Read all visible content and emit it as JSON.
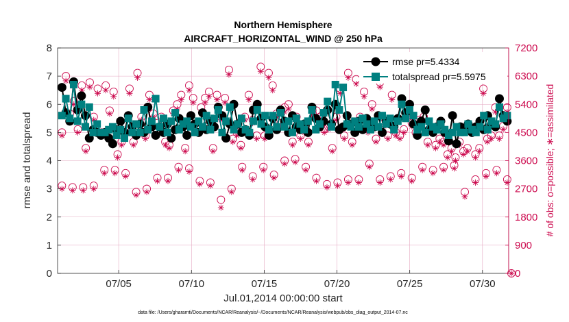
{
  "chart_data": {
    "type": "line",
    "title_line1": "Northern Hemisphere",
    "title_line2": "AIRCRAFT_HORIZONTAL_WIND @ 250 hPa",
    "xlabel": "Jul.01,2014 00:00:00 start",
    "ylabel_left": "rmse and totalspread",
    "ylabel_right": "# of obs: o=possible; ∗=assimilated",
    "footer": "data file: /Users/gharamti/Documents/NCAR/Reanalysis/~/Documents/NCAR/Reanalysis/webpub/obs_diag_output_2014-07.nc",
    "xlim": [
      0.8,
      31.8
    ],
    "ylim_left": [
      0,
      8
    ],
    "ylim_right": [
      0,
      7200
    ],
    "x_ticks": [
      {
        "x": 5,
        "label": "07/05"
      },
      {
        "x": 10,
        "label": "07/10"
      },
      {
        "x": 15,
        "label": "07/15"
      },
      {
        "x": 20,
        "label": "07/20"
      },
      {
        "x": 25,
        "label": "07/25"
      },
      {
        "x": 30,
        "label": "07/30"
      }
    ],
    "y_ticks_left": [
      "0",
      "1",
      "2",
      "3",
      "4",
      "5",
      "6",
      "7",
      "8"
    ],
    "y_ticks_right": [
      "0",
      "900",
      "1800",
      "2700",
      "3600",
      "4500",
      "5400",
      "6300",
      "7200"
    ],
    "legend": [
      {
        "name": "rmse pr=5.4334",
        "color": "#000000"
      },
      {
        "name": "totalspread pr=5.5975",
        "color": "#008080"
      }
    ],
    "colors": {
      "rmse": "#000000",
      "spread": "#008080",
      "obs": "#cc0a4e",
      "grid": "#e4a7c0"
    },
    "series": [
      {
        "name": "rmse",
        "values": [
          6.6,
          5.7,
          5.4,
          6.8,
          5.8,
          6.3,
          5.6,
          4.8,
          5.1,
          5.0,
          4.9,
          5.0,
          4.8,
          4.6,
          5.1,
          5.4,
          5.0,
          5.6,
          5.2,
          4.9,
          5.3,
          5.0,
          5.9,
          5.2,
          4.9,
          5.2,
          5.0,
          5.3,
          4.8,
          5.1,
          5.5,
          5.2,
          4.9,
          5.6,
          5.3,
          5.0,
          5.7,
          5.1,
          5.4,
          5.2,
          5.9,
          5.6,
          4.8,
          5.3,
          6.0,
          5.3,
          5.0,
          5.1,
          4.9,
          5.8,
          6.0,
          5.5,
          5.2,
          4.9,
          5.5,
          5.1,
          5.8,
          5.4,
          5.0,
          5.6,
          5.2,
          5.1,
          5.3,
          5.0,
          5.9,
          5.5,
          5.2,
          5.4,
          5.8,
          5.3,
          6.0,
          5.1,
          5.2,
          5.6,
          5.3,
          5.0,
          5.4,
          5.1,
          5.5,
          5.3,
          5.2,
          5.6,
          5.0,
          5.4,
          5.3,
          5.2,
          5.5,
          6.2,
          5.7,
          6.0,
          5.3,
          4.9,
          5.4,
          5.8,
          5.1,
          5.0,
          5.2,
          5.4,
          5.0,
          4.7,
          5.6,
          4.6,
          5.2,
          5.1,
          5.3,
          5.0,
          5.2,
          5.4,
          5.1,
          5.6,
          5.3,
          5.2,
          6.2,
          5.6,
          5.4
        ]
      },
      {
        "name": "totalspread",
        "values": [
          5.6,
          6.2,
          5.5,
          6.7,
          5.4,
          6.0,
          5.2,
          5.9,
          5.0,
          5.3,
          5.0,
          5.0,
          5.1,
          5.2,
          4.9,
          5.1,
          4.8,
          5.5,
          5.0,
          5.3,
          5.0,
          5.8,
          5.1,
          5.4,
          6.2,
          5.2,
          5.5,
          5.0,
          5.4,
          5.7,
          5.1,
          5.3,
          5.4,
          5.2,
          5.0,
          5.4,
          5.2,
          5.6,
          5.1,
          5.5,
          5.8,
          5.0,
          5.4,
          5.9,
          5.1,
          5.3,
          5.5,
          5.1,
          5.0,
          5.4,
          5.8,
          5.3,
          5.6,
          5.1,
          5.6,
          5.2,
          5.7,
          5.2,
          5.4,
          5.0,
          5.5,
          5.3,
          5.1,
          5.4,
          5.8,
          5.1,
          5.3,
          5.7,
          6.1,
          5.2,
          6.7,
          5.8,
          6.6,
          5.3,
          5.2,
          5.4,
          5.2,
          5.5,
          5.3,
          5.1,
          5.4,
          5.2,
          5.6,
          5.3,
          5.5,
          5.1,
          5.4,
          6.0,
          5.5,
          5.8,
          5.6,
          5.1,
          5.2,
          5.0,
          5.4,
          5.2,
          5.1,
          5.3,
          5.1,
          4.9,
          5.0,
          5.2,
          5.0,
          5.0,
          5.3,
          5.1,
          5.0,
          5.2,
          5.6,
          5.1,
          5.4,
          5.3,
          5.9,
          5.5,
          5.6
        ]
      },
      {
        "name": "obs_possible_day",
        "values": [
          4500,
          6300,
          5100,
          5500,
          4600,
          6000,
          4000,
          6100,
          5000,
          5900,
          4500,
          6000,
          5200,
          5800,
          3800,
          4200,
          4500,
          5900,
          4200,
          6400,
          5000,
          4400,
          5700,
          5100,
          4800,
          5000,
          4200,
          4100,
          5200,
          5400,
          5700,
          4000,
          6000,
          5600,
          4600,
          5300,
          5600,
          5800,
          4000,
          5700,
          5000,
          5600,
          6500,
          4300,
          4500,
          4100,
          5000,
          5700,
          4900,
          4400,
          6600,
          4400,
          6400,
          6000,
          5100,
          4800,
          5300,
          5400,
          4200,
          5000,
          4400,
          4600,
          4200,
          5200,
          5200,
          5000,
          4600,
          4700,
          4000,
          5000,
          5900,
          4400,
          6400,
          4200,
          6200,
          5000,
          5800,
          4600,
          5400,
          4300,
          6100,
          4800,
          4400,
          5700,
          4500,
          4400,
          4600,
          5100,
          4800,
          4500,
          4900,
          5000,
          4200,
          4600,
          4100,
          4300,
          4200,
          3800,
          4000,
          3700,
          4200,
          3900,
          4000,
          6400,
          3800,
          4000,
          5900,
          4300,
          4400,
          5300,
          4400,
          4700,
          5300
        ]
      },
      {
        "name": "obs_possible_night",
        "values": [
          2800,
          2750,
          2750,
          2800,
          3300,
          3300,
          3200,
          2600,
          2700,
          3050,
          3050,
          3400,
          3350,
          2950,
          2900,
          2350,
          2700,
          3400,
          3100,
          3400,
          3150,
          3600,
          3650,
          3400,
          3050,
          2850,
          2900,
          3000,
          3000,
          3500,
          3000,
          3100,
          3200,
          3050,
          3400,
          3300,
          3400,
          3450,
          2600,
          3000,
          3200,
          3300,
          3000
        ]
      },
      {
        "name": "obs_assimilated_day",
        "values": [
          4400,
          6150,
          5000,
          5400,
          4500,
          5850,
          3900,
          5950,
          4900,
          5750,
          4400,
          5850,
          5100,
          5650,
          3700,
          4100,
          4400,
          5750,
          4100,
          6250,
          4900,
          4300,
          5550,
          5000,
          4700,
          4900,
          4100,
          4000,
          5100,
          5250,
          5550,
          3900,
          5850,
          5450,
          4500,
          5150,
          5450,
          5650,
          3900,
          5550,
          4900,
          5450,
          6350,
          4200,
          4400,
          4000,
          4900,
          5550,
          4800,
          4300,
          6450,
          4300,
          6250,
          5850,
          5000,
          4700,
          5150,
          5250,
          4100,
          4900,
          4300,
          4500,
          4100,
          5050,
          5050,
          4900,
          4500,
          4600,
          3900,
          4900,
          5750,
          4300,
          6250,
          4100,
          6050,
          4900,
          5650,
          4500,
          5250,
          4200,
          5950,
          4700,
          4300,
          5550,
          4400,
          4300,
          4500,
          5000,
          4700,
          4400,
          4800,
          4900,
          4100,
          4500,
          4000,
          4200,
          4100,
          3700,
          3900,
          3600,
          4100,
          3800,
          3900,
          6250,
          3700,
          3900,
          5750,
          4200,
          4300,
          5150,
          4300,
          4600,
          5150
        ]
      },
      {
        "name": "obs_assimilated_night",
        "values": [
          2700,
          2650,
          2650,
          2700,
          3200,
          3200,
          3100,
          2500,
          2600,
          2950,
          2950,
          3300,
          3250,
          2850,
          2800,
          2100,
          2600,
          3300,
          3000,
          3300,
          3050,
          3500,
          3550,
          3300,
          2950,
          2750,
          2800,
          2900,
          2900,
          3400,
          2900,
          3000,
          3100,
          2950,
          3300,
          3200,
          3300,
          3350,
          2450,
          2900,
          3100,
          3200,
          2900
        ]
      }
    ]
  }
}
